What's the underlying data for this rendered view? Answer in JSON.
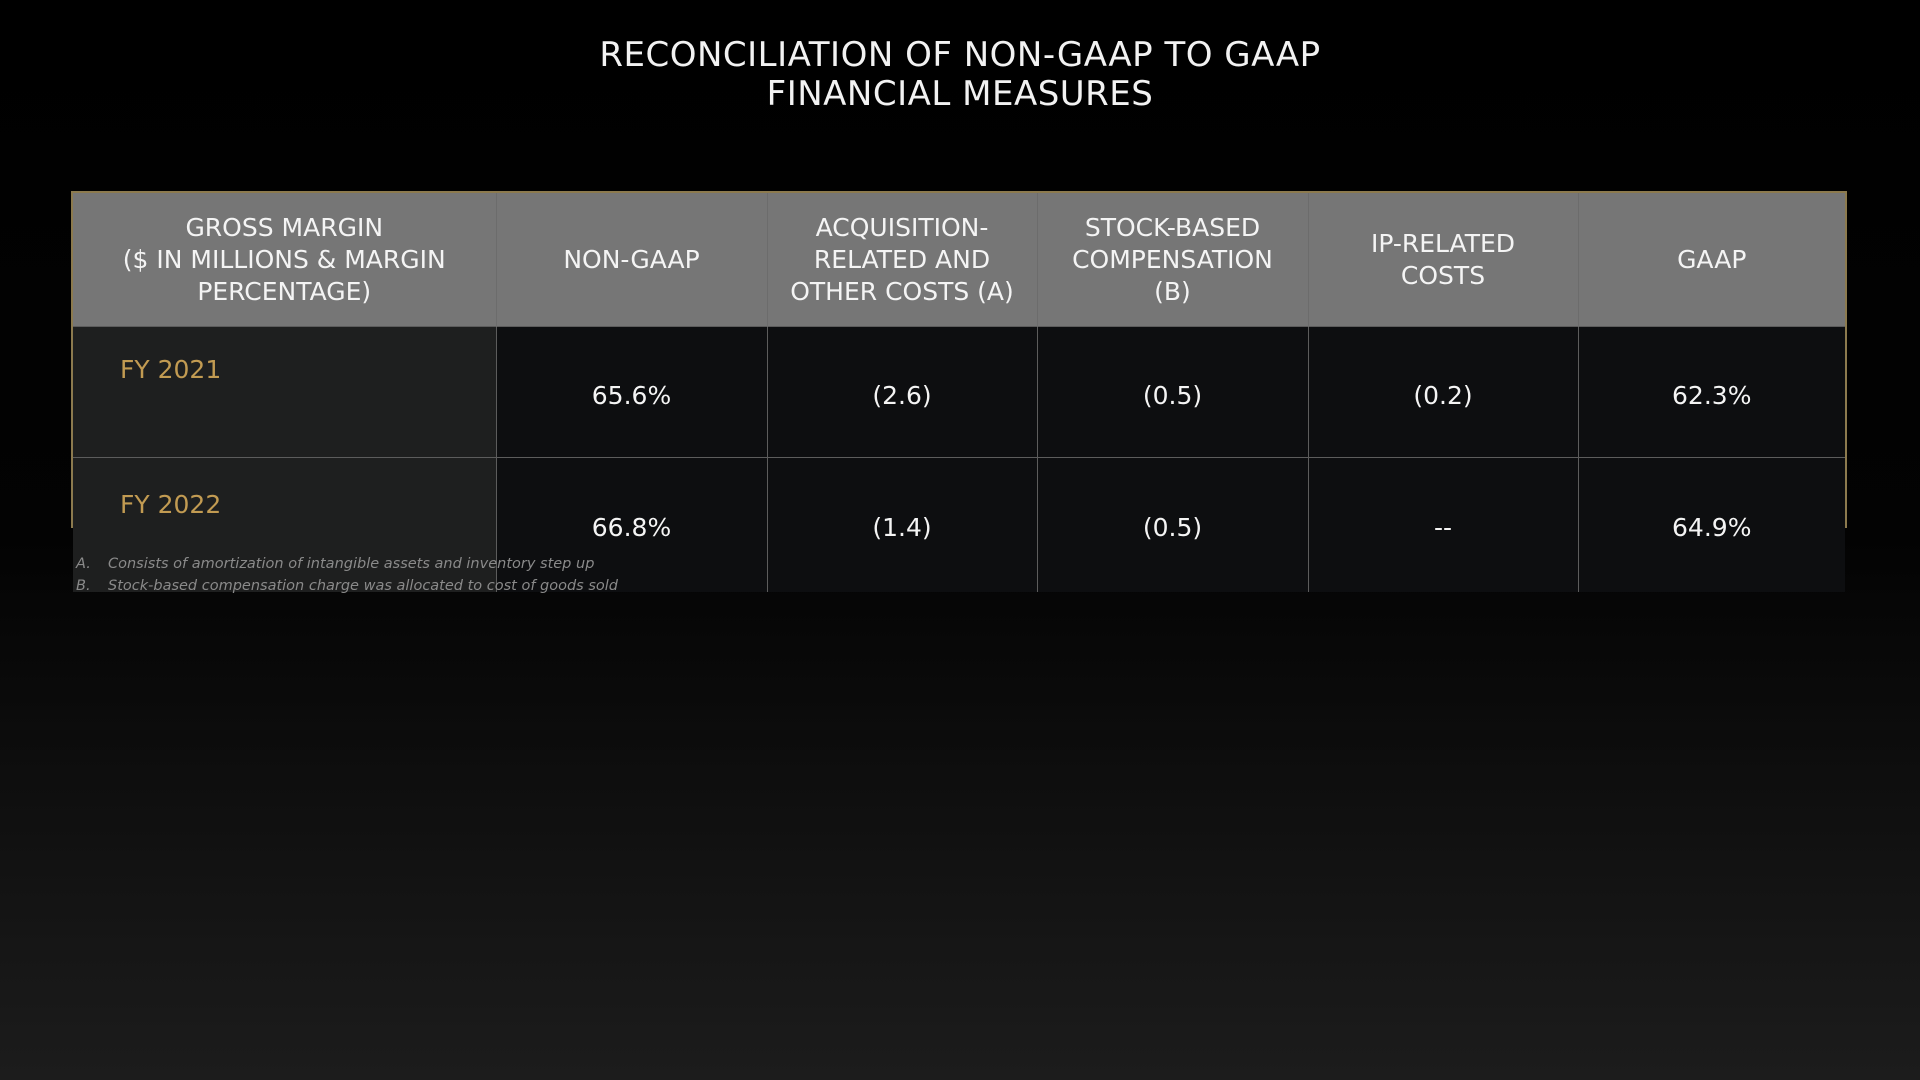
{
  "title": {
    "line1": "RECONCILIATION OF NON-GAAP TO GAAP",
    "line2": "FINANCIAL MEASURES"
  },
  "table": {
    "headers": [
      {
        "lines": [
          "GROSS MARGIN",
          "($ IN MILLIONS & MARGIN",
          "PERCENTAGE)"
        ]
      },
      {
        "lines": [
          "NON-GAAP"
        ]
      },
      {
        "lines": [
          "ACQUISITION-",
          "RELATED AND",
          "OTHER COSTS (A)"
        ]
      },
      {
        "lines": [
          "STOCK-BASED",
          "COMPENSATION",
          "(B)"
        ]
      },
      {
        "lines": [
          "IP-RELATED",
          "COSTS"
        ]
      },
      {
        "lines": [
          "GAAP"
        ]
      }
    ],
    "rows": [
      {
        "label": "FY 2021",
        "non_gaap": "65.6%",
        "acquisition": "(2.6)",
        "stock_based": "(0.5)",
        "ip_related": "(0.2)",
        "gaap": "62.3%"
      },
      {
        "label": "FY 2022",
        "non_gaap": "66.8%",
        "acquisition": "(1.4)",
        "stock_based": "(0.5)",
        "ip_related": "--",
        "gaap": "64.9%"
      }
    ]
  },
  "notes": [
    {
      "marker": "A.",
      "text": "Consists of amortization of intangible assets and inventory step up"
    },
    {
      "marker": "B.",
      "text": "Stock-based compensation charge was allocated to cost of goods sold"
    }
  ],
  "colors": {
    "background_top": "#000000",
    "background_bottom": "#1c1c1c",
    "header_fill": "#767676",
    "border_gold": "#8c7a4e",
    "row_label_gold": "#c29b52"
  }
}
